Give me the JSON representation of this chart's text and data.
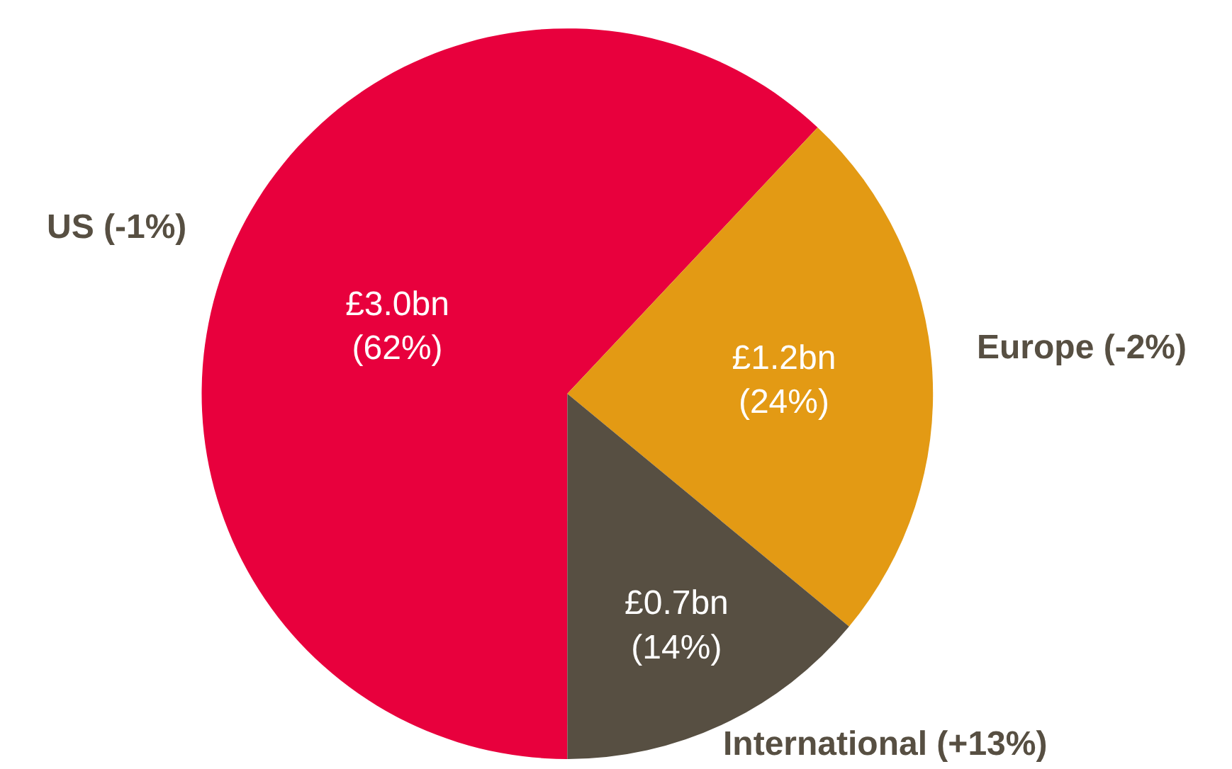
{
  "chart_data": {
    "type": "pie",
    "categories": [
      "US (-1%)",
      "Europe (-2%)",
      "International (+13%)"
    ],
    "values": [
      62,
      24,
      14
    ],
    "value_labels": [
      "£3.0bn\n(62%)",
      "£1.2bn\n(24%)",
      "£0.7bn\n(14%)"
    ],
    "colors": [
      "#e8003d",
      "#e39a14",
      "#574f42"
    ],
    "legend": false
  }
}
